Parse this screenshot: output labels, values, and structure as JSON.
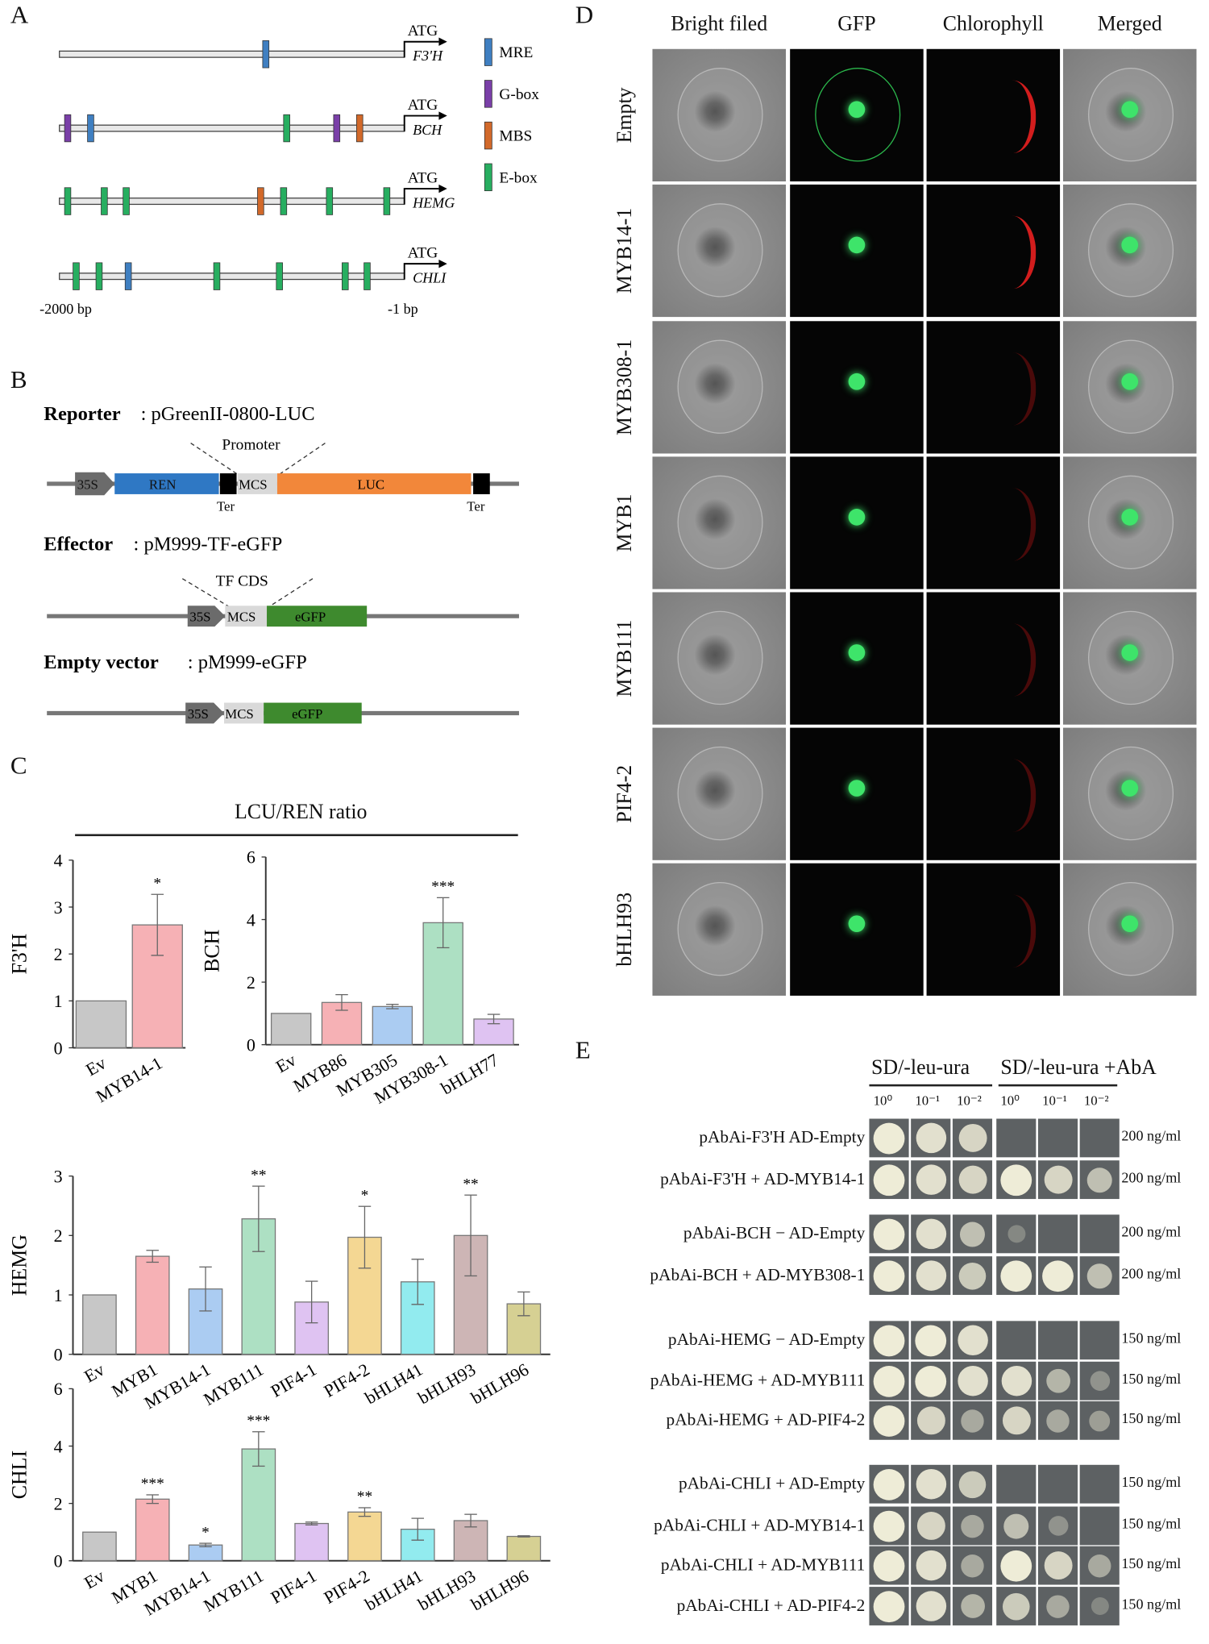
{
  "panels": {
    "A": "A",
    "B": "B",
    "C": "C",
    "D": "D",
    "E": "E"
  },
  "panel_a": {
    "start_label": "-2000 bp",
    "end_label": "-1 bp",
    "atg": "ATG",
    "legend": [
      {
        "label": "MRE",
        "color": "#3f7fc1"
      },
      {
        "label": "G-box",
        "color": "#7a3fa8"
      },
      {
        "label": "MBS",
        "color": "#d2692a"
      },
      {
        "label": "E-box",
        "color": "#27ae60"
      }
    ],
    "genes": [
      {
        "name": "F3'H",
        "motifs": [
          [
            "MRE",
            -804
          ]
        ]
      },
      {
        "name": "BCH",
        "motifs": [
          [
            "G-box",
            -1952
          ],
          [
            "MRE",
            -1819
          ],
          [
            "E-box",
            -683
          ],
          [
            "G-box",
            -393
          ],
          [
            "MBS",
            -260
          ]
        ]
      },
      {
        "name": "HEMG",
        "motifs": [
          [
            "E-box",
            -1952
          ],
          [
            "E-box",
            -1740
          ],
          [
            "E-box",
            -1613
          ],
          [
            "MBS",
            -834
          ],
          [
            "E-box",
            -701
          ],
          [
            "E-box",
            -435
          ],
          [
            "E-box",
            -103
          ]
        ]
      },
      {
        "name": "CHLI",
        "motifs": [
          [
            "E-box",
            -1903
          ],
          [
            "E-box",
            -1770
          ],
          [
            "MRE",
            -1601
          ],
          [
            "E-box",
            -1088
          ],
          [
            "E-box",
            -725
          ],
          [
            "E-box",
            -344
          ],
          [
            "E-box",
            -217
          ]
        ]
      }
    ]
  },
  "panel_b": {
    "reporter_title": "Reporter",
    "reporter_name": ": pGreenII-0800-LUC",
    "promoter": "Promoter",
    "p35s": "35S",
    "ren": "REN",
    "mcs": "MCS",
    "luc": "LUC",
    "ter": "Ter",
    "effector_title": "Effector",
    "effector_name": ": pM999-TF-eGFP",
    "tf_cds": "TF CDS",
    "egfp": "eGFP",
    "empty_title": "Empty vector",
    "empty_name": ": pM999-eGFP",
    "colors": {
      "ren": "#2f78c4",
      "luc": "#f2873a",
      "egfp": "#3e8a2e",
      "mcs": "#d9d9d9",
      "p35s": "#6b6b6b"
    }
  },
  "panel_c": {
    "header": "LCU/REN ratio"
  },
  "chart_data": [
    {
      "type": "bar",
      "ylabel": "F3'H",
      "ylim": [
        0,
        4
      ],
      "ticks": [
        0,
        1,
        2,
        3,
        4
      ],
      "categories": [
        "Ev",
        "MYB14-1"
      ],
      "values": [
        1.0,
        2.62
      ],
      "errors": [
        0.0,
        0.65
      ],
      "significance": [
        "",
        "*"
      ],
      "colors": [
        "#bdbdbd",
        "#f5a3a8"
      ]
    },
    {
      "type": "bar",
      "ylabel": "BCH",
      "ylim": [
        0,
        6
      ],
      "ticks": [
        0,
        2,
        4,
        6
      ],
      "categories": [
        "Ev",
        "MYB86",
        "MYB305",
        "MYB308-1",
        "bHLH77"
      ],
      "values": [
        1.0,
        1.35,
        1.22,
        3.9,
        0.82
      ],
      "errors": [
        0.0,
        0.25,
        0.07,
        0.8,
        0.15
      ],
      "significance": [
        "",
        "",
        "",
        "***",
        ""
      ],
      "colors": [
        "#bdbdbd",
        "#f5a3a8",
        "#9cc3f0",
        "#9fdbb8",
        "#d9b8f0"
      ]
    },
    {
      "type": "bar",
      "ylabel": "HEMG",
      "ylim": [
        0,
        3
      ],
      "ticks": [
        0,
        1,
        2,
        3
      ],
      "categories": [
        "Ev",
        "MYB1",
        "MYB14-1",
        "MYB111",
        "PIF4-1",
        "PIF4-2",
        "bHLH41",
        "bHLH93",
        "bHLH96"
      ],
      "values": [
        1.0,
        1.65,
        1.1,
        2.28,
        0.88,
        1.97,
        1.22,
        2.0,
        0.85
      ],
      "errors": [
        0.0,
        0.1,
        0.37,
        0.55,
        0.35,
        0.52,
        0.38,
        0.68,
        0.2
      ],
      "significance": [
        "",
        "",
        "",
        "**",
        "",
        "*",
        "",
        "**",
        ""
      ],
      "colors": [
        "#bdbdbd",
        "#f5a3a8",
        "#9cc3f0",
        "#9fdbb8",
        "#d9b8f0",
        "#f2d080",
        "#7fe8ec",
        "#c4a8a8",
        "#cfc880"
      ]
    },
    {
      "type": "bar",
      "ylabel": "CHLI",
      "ylim": [
        0,
        6
      ],
      "ticks": [
        0,
        2,
        4,
        6
      ],
      "categories": [
        "Ev",
        "MYB1",
        "MYB14-1",
        "MYB111",
        "PIF4-1",
        "PIF4-2",
        "bHLH41",
        "bHLH93",
        "bHLH96"
      ],
      "values": [
        1.0,
        2.15,
        0.55,
        3.9,
        1.3,
        1.7,
        1.1,
        1.4,
        0.85
      ],
      "errors": [
        0.0,
        0.15,
        0.06,
        0.6,
        0.05,
        0.15,
        0.38,
        0.22,
        0.02
      ],
      "significance": [
        "",
        "***",
        "*",
        "***",
        "",
        "**",
        "",
        "",
        ""
      ],
      "colors": [
        "#bdbdbd",
        "#f5a3a8",
        "#9cc3f0",
        "#9fdbb8",
        "#d9b8f0",
        "#f2d080",
        "#7fe8ec",
        "#c4a8a8",
        "#cfc880"
      ]
    }
  ],
  "panel_d": {
    "columns": [
      "Bright filed",
      "GFP",
      "Chlorophyll",
      "Merged"
    ],
    "rows": [
      "Empty",
      "MYB14-1",
      "MYB308-1",
      "MYB1",
      "MYB111",
      "PIF4-2",
      "bHLH93"
    ]
  },
  "panel_e": {
    "group1": "SD/-leu-ura",
    "group2": "SD/-leu-ura +AbA",
    "dilutions": [
      "10⁰",
      "10⁻¹",
      "10⁻²",
      "10⁰",
      "10⁻¹",
      "10⁻²"
    ],
    "rows": [
      {
        "label": "pAbAi-F3'H    AD-Empty",
        "conc": "200 ng/ml",
        "growth": [
          1,
          0.9,
          0.8,
          0,
          0,
          0
        ]
      },
      {
        "label": "pAbAi-F3'H + AD-MYB14-1",
        "conc": "200 ng/ml",
        "growth": [
          1,
          0.9,
          0.8,
          1,
          0.8,
          0.6
        ]
      },
      {
        "label": "pAbAi-BCH − AD-Empty",
        "conc": "200 ng/ml",
        "growth": [
          1,
          0.9,
          0.6,
          0.1,
          0,
          0
        ]
      },
      {
        "label": "pAbAi-BCH + AD-MYB308-1",
        "conc": "200 ng/ml",
        "growth": [
          1,
          0.9,
          0.7,
          1,
          1,
          0.6
        ]
      },
      {
        "label": "pAbAi-HEMG − AD-Empty",
        "conc": "150 ng/ml",
        "growth": [
          1,
          1,
          0.9,
          0,
          0,
          0
        ]
      },
      {
        "label": "pAbAi-HEMG + AD-MYB111",
        "conc": "150 ng/ml",
        "growth": [
          1,
          1,
          0.9,
          0.9,
          0.5,
          0.2
        ]
      },
      {
        "label": "pAbAi-HEMG + AD-PIF4-2",
        "conc": "150 ng/ml",
        "growth": [
          1,
          0.8,
          0.4,
          0.8,
          0.4,
          0.3
        ]
      },
      {
        "label": "pAbAi-CHLI + AD-Empty",
        "conc": "150 ng/ml",
        "growth": [
          1,
          0.9,
          0.7,
          0,
          0,
          0
        ]
      },
      {
        "label": "pAbAi-CHLI + AD-MYB14-1",
        "conc": "150 ng/ml",
        "growth": [
          1,
          0.8,
          0.4,
          0.6,
          0.2,
          0
        ]
      },
      {
        "label": "pAbAi-CHLI + AD-MYB111",
        "conc": "150 ng/ml",
        "growth": [
          1,
          0.9,
          0.4,
          1,
          0.8,
          0.4
        ]
      },
      {
        "label": "pAbAi-CHLI + AD-PIF4-2",
        "conc": "150 ng/ml",
        "growth": [
          1,
          0.9,
          0.5,
          0.7,
          0.4,
          0.1
        ]
      }
    ]
  }
}
